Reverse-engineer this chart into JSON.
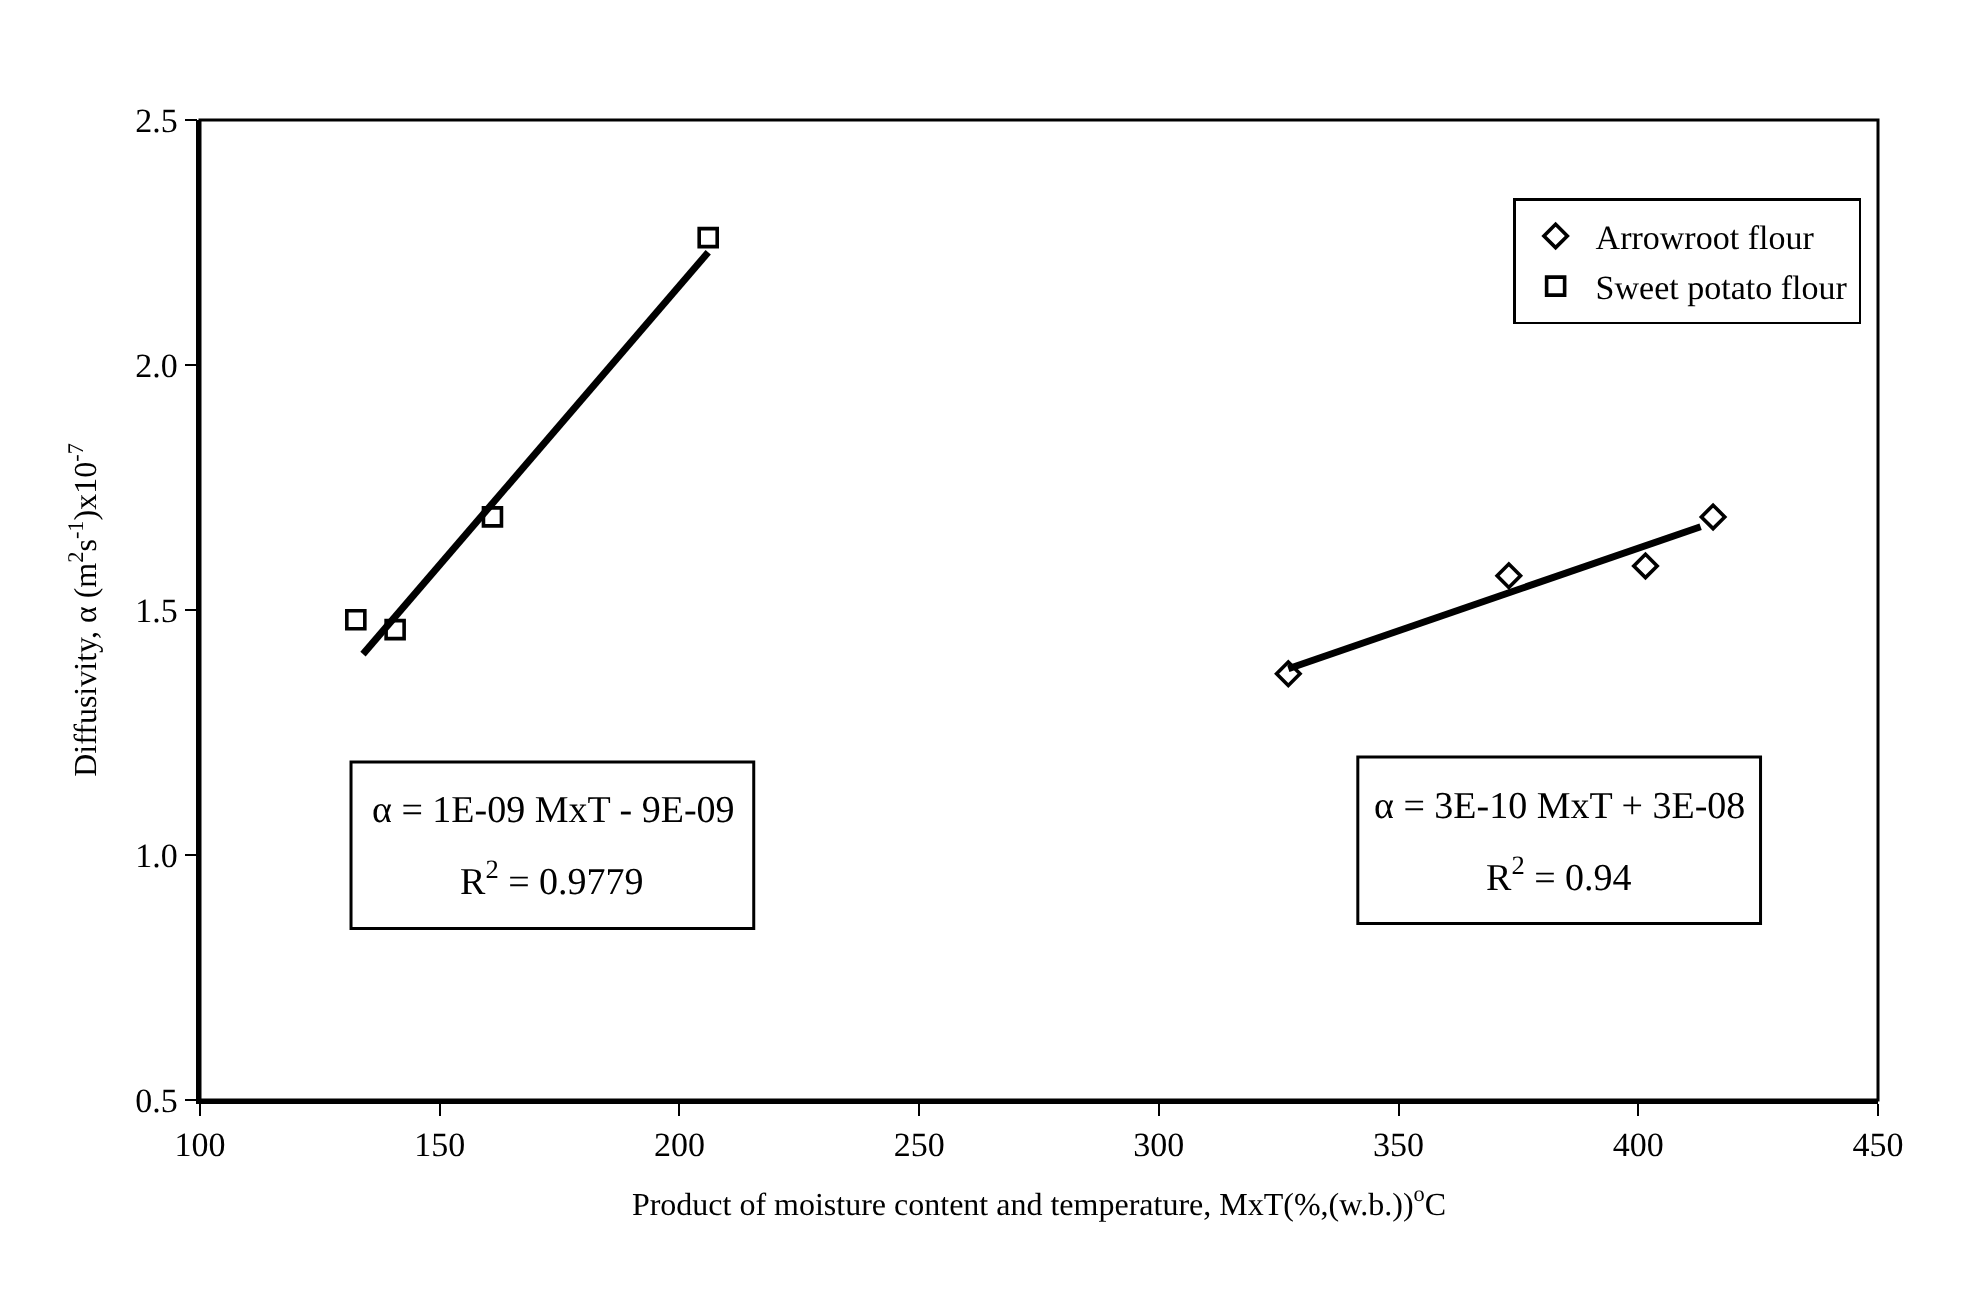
{
  "chart_data": {
    "type": "scatter",
    "xlabel": "Product of moisture content and temperature, MxT(%,(w.b.))$^{o}$C",
    "ylabel": "Diffusivity, α (m$^{2}$s$^{-1}$)x10$^{-7}$",
    "series": [
      {
        "name": "Arrowroot flour",
        "color": "#000000",
        "marker": "diamond",
        "x": [
          327,
          373,
          401.5,
          415.6
        ],
        "values": [
          1.37,
          1.57,
          1.59,
          1.69
        ]
      },
      {
        "name": "Sweet potato flour",
        "color": "#000000",
        "marker": "square",
        "x": [
          132.5,
          140.7,
          161,
          206
        ],
        "values": [
          1.48,
          1.46,
          1.69,
          2.26
        ]
      },
      {
        "type": "line",
        "color": "#000000",
        "x": [
          327,
          413
        ],
        "values": [
          1.38,
          1.67
        ]
      },
      {
        "type": "line",
        "color": "#000000",
        "x": [
          134,
          206
        ],
        "values": [
          1.41,
          2.23
        ]
      }
    ],
    "annotations": [
      "α = 1E-09 MxT - 9E-09",
      "R$^{2}$ = 0.9779",
      "α = 3E-10 MxT + 3E-08",
      "R$^{2}$ = 0.94"
    ],
    "xlim": [
      100,
      450
    ],
    "xticks": [
      100,
      150,
      200,
      250,
      300,
      350,
      400,
      450
    ],
    "ylim": [
      0.5,
      2.5
    ],
    "yticks": [
      {
        "value": 0.5,
        "label": "0.5"
      },
      {
        "value": 1.0,
        "label": "1.0"
      },
      {
        "value": 1.5,
        "label": "1.5"
      },
      {
        "value": 2.0,
        "label": "2.0"
      },
      {
        "value": 2.5,
        "label": "2.5"
      }
    ],
    "grid": false,
    "legend": "top right"
  }
}
